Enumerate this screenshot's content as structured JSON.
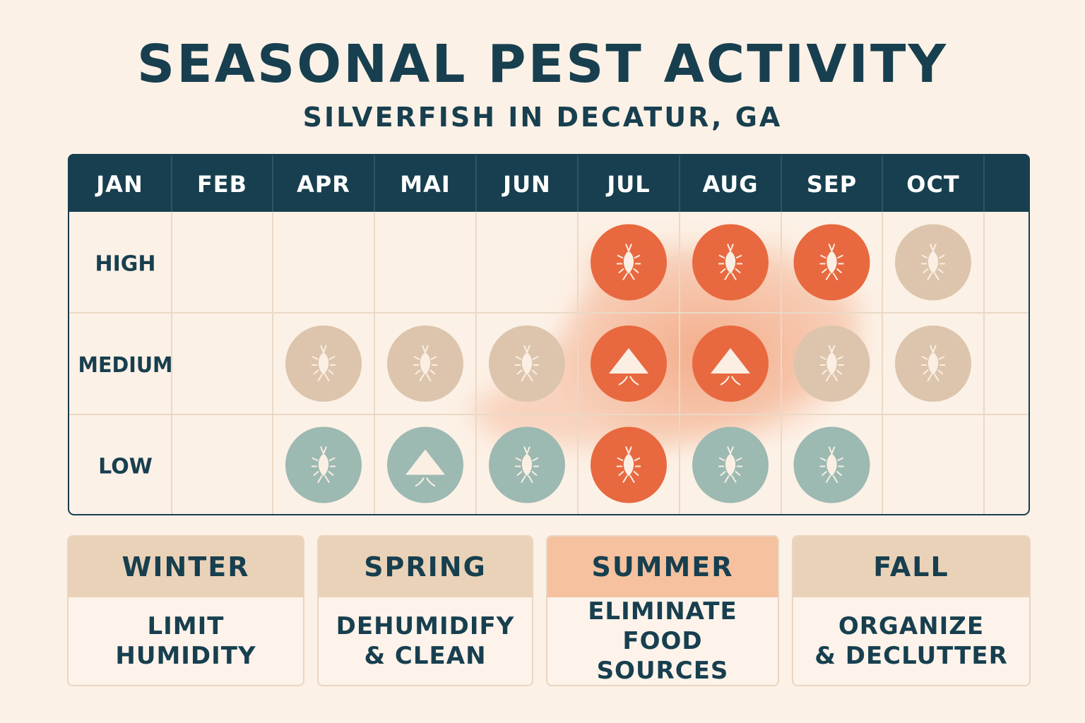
{
  "header": {
    "title": "SEASONAL PEST ACTIVITY",
    "subtitle": "SILVERFISH IN DECATUR, GA"
  },
  "chart_data": {
    "type": "heatmap",
    "months": [
      "JAN",
      "FEB",
      "APR",
      "MAI",
      "JUN",
      "JUL",
      "AUG",
      "SEP",
      "OCT",
      ""
    ],
    "levels": [
      "HIGH",
      "MEDIUM",
      "LOW"
    ],
    "colors": {
      "header": "#173f4f",
      "peak": "#e8693f",
      "moderate": "#dcc5ac",
      "low": "#9cb9b2",
      "glow": "#f2a27c"
    },
    "cells": [
      {
        "month": "JUL",
        "level": "HIGH",
        "intensity": "peak",
        "icon": "silverfish-icon"
      },
      {
        "month": "AUG",
        "level": "HIGH",
        "intensity": "peak",
        "icon": "silverfish-icon"
      },
      {
        "month": "SEP",
        "level": "HIGH",
        "intensity": "peak",
        "icon": "silverfish-icon"
      },
      {
        "month": "OCT",
        "level": "HIGH",
        "intensity": "moderate",
        "icon": "silverfish-icon"
      },
      {
        "month": "APR",
        "level": "MEDIUM",
        "intensity": "moderate",
        "icon": "silverfish-icon"
      },
      {
        "month": "MAI",
        "level": "MEDIUM",
        "intensity": "moderate",
        "icon": "silverfish-icon"
      },
      {
        "month": "JUN",
        "level": "MEDIUM",
        "intensity": "moderate",
        "icon": "silverfish-icon"
      },
      {
        "month": "JUL",
        "level": "MEDIUM",
        "intensity": "peak",
        "icon": "triangle-icon"
      },
      {
        "month": "AUG",
        "level": "MEDIUM",
        "intensity": "peak",
        "icon": "triangle-icon"
      },
      {
        "month": "SEP",
        "level": "MEDIUM",
        "intensity": "moderate",
        "icon": "silverfish-icon"
      },
      {
        "month": "OCT",
        "level": "MEDIUM",
        "intensity": "moderate",
        "icon": "silverfish-icon"
      },
      {
        "month": "APR",
        "level": "LOW",
        "intensity": "low",
        "icon": "silverfish-icon"
      },
      {
        "month": "MAI",
        "level": "LOW",
        "intensity": "low",
        "icon": "triangle-icon"
      },
      {
        "month": "JUN",
        "level": "LOW",
        "intensity": "low",
        "icon": "silverfish-icon"
      },
      {
        "month": "JUL",
        "level": "LOW",
        "intensity": "peak",
        "icon": "silverfish-icon"
      },
      {
        "month": "AUG",
        "level": "LOW",
        "intensity": "low",
        "icon": "silverfish-icon"
      },
      {
        "month": "SEP",
        "level": "LOW",
        "intensity": "low",
        "icon": "silverfish-icon"
      }
    ]
  },
  "seasons": [
    {
      "name": "WINTER",
      "tip_line1": "LIMIT",
      "tip_line2": "HUMIDITY",
      "head_color": "#ead2b8"
    },
    {
      "name": "SPRING",
      "tip_line1": "DEHUMIDIFY",
      "tip_line2": "& CLEAN",
      "head_color": "#ead2b8"
    },
    {
      "name": "SUMMER",
      "tip_line1": "ELIMINATE",
      "tip_line2": "FOOD SOURCES",
      "head_color": "#f5c19f"
    },
    {
      "name": "FALL",
      "tip_line1": "ORGANIZE",
      "tip_line2": "& DECLUTTER",
      "head_color": "#ead2b8"
    }
  ]
}
